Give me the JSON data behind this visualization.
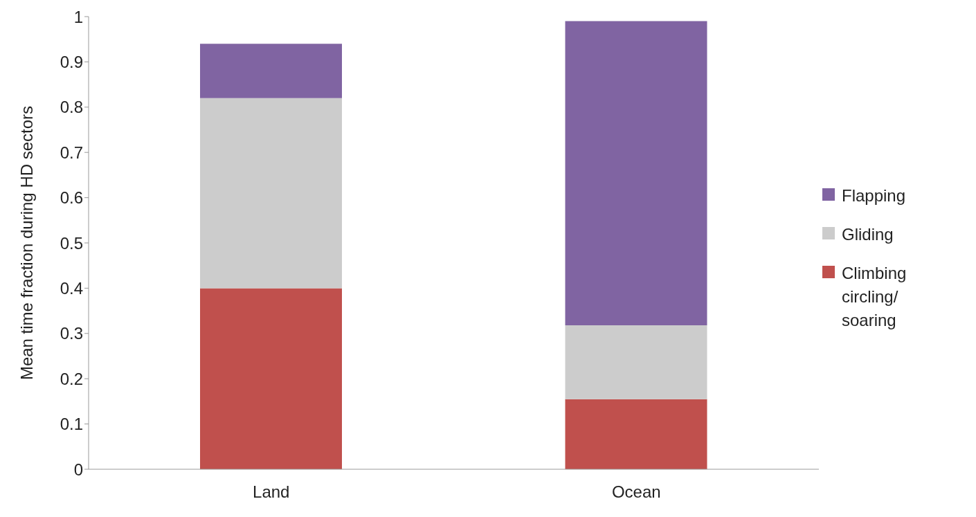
{
  "chart_data": {
    "type": "bar",
    "stacked": true,
    "ylabel": "Mean time fraction during HD sectors",
    "categories": [
      "Land",
      "Ocean"
    ],
    "series": [
      {
        "name": "Climbing circling/ soaring",
        "color": "#c0504d",
        "values": [
          0.4,
          0.155
        ]
      },
      {
        "name": "Gliding",
        "color": "#cccccc",
        "values": [
          0.42,
          0.163
        ]
      },
      {
        "name": "Flapping",
        "color": "#8064a2",
        "values": [
          0.12,
          0.672
        ]
      }
    ],
    "ylim": [
      0,
      1
    ],
    "yticks": [
      0,
      0.1,
      0.2,
      0.3,
      0.4,
      0.5,
      0.6,
      0.7,
      0.8,
      0.9,
      1
    ],
    "grid": false,
    "legend": "right"
  }
}
